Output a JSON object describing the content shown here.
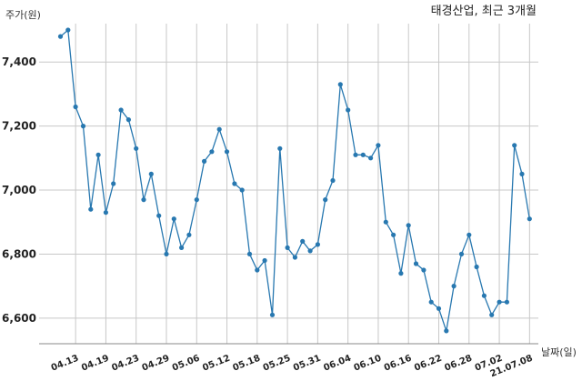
{
  "chart_data": {
    "type": "line",
    "title": "태경산업, 최근 3개월",
    "ylabel": "주가(원)",
    "xlabel": "날짜(일)",
    "ylim": [
      6520,
      7520
    ],
    "yticks": [
      6600,
      6800,
      7000,
      7200,
      7400
    ],
    "ytick_labels": [
      "6,600",
      "6,800",
      "7,000",
      "7,200",
      "7,400"
    ],
    "xtick_labels": [
      "04.13",
      "04.19",
      "04.23",
      "04.29",
      "05.06",
      "05.12",
      "05.18",
      "05.25",
      "05.31",
      "06.04",
      "06.10",
      "06.16",
      "06.22",
      "06.28",
      "07.02",
      "21.07.08"
    ],
    "xtick_index": [
      2,
      6,
      10,
      14,
      18,
      22,
      26,
      30,
      34,
      38,
      42,
      46,
      50,
      54,
      58,
      62
    ],
    "grid": true,
    "color": "#2878b0",
    "series": [
      {
        "values": [
          7480,
          7500,
          7260,
          7200,
          6940,
          7110,
          6930,
          7020,
          7250,
          7220,
          7130,
          6970,
          7050,
          6920,
          6800,
          6910,
          6820,
          6860,
          6970,
          7090,
          7120,
          7190,
          7120,
          7020,
          7000,
          6800,
          6750,
          6780,
          6610,
          7130,
          6820,
          6790,
          6840,
          6810,
          6830,
          6970,
          7030,
          7330,
          7250,
          7110,
          7110,
          7100,
          7140,
          6900,
          6860,
          6740,
          6890,
          6770,
          6750,
          6650,
          6630,
          6560,
          6700,
          6800,
          6860,
          6760,
          6670,
          6610,
          6650,
          6650,
          7140,
          7050,
          6910
        ]
      }
    ]
  }
}
